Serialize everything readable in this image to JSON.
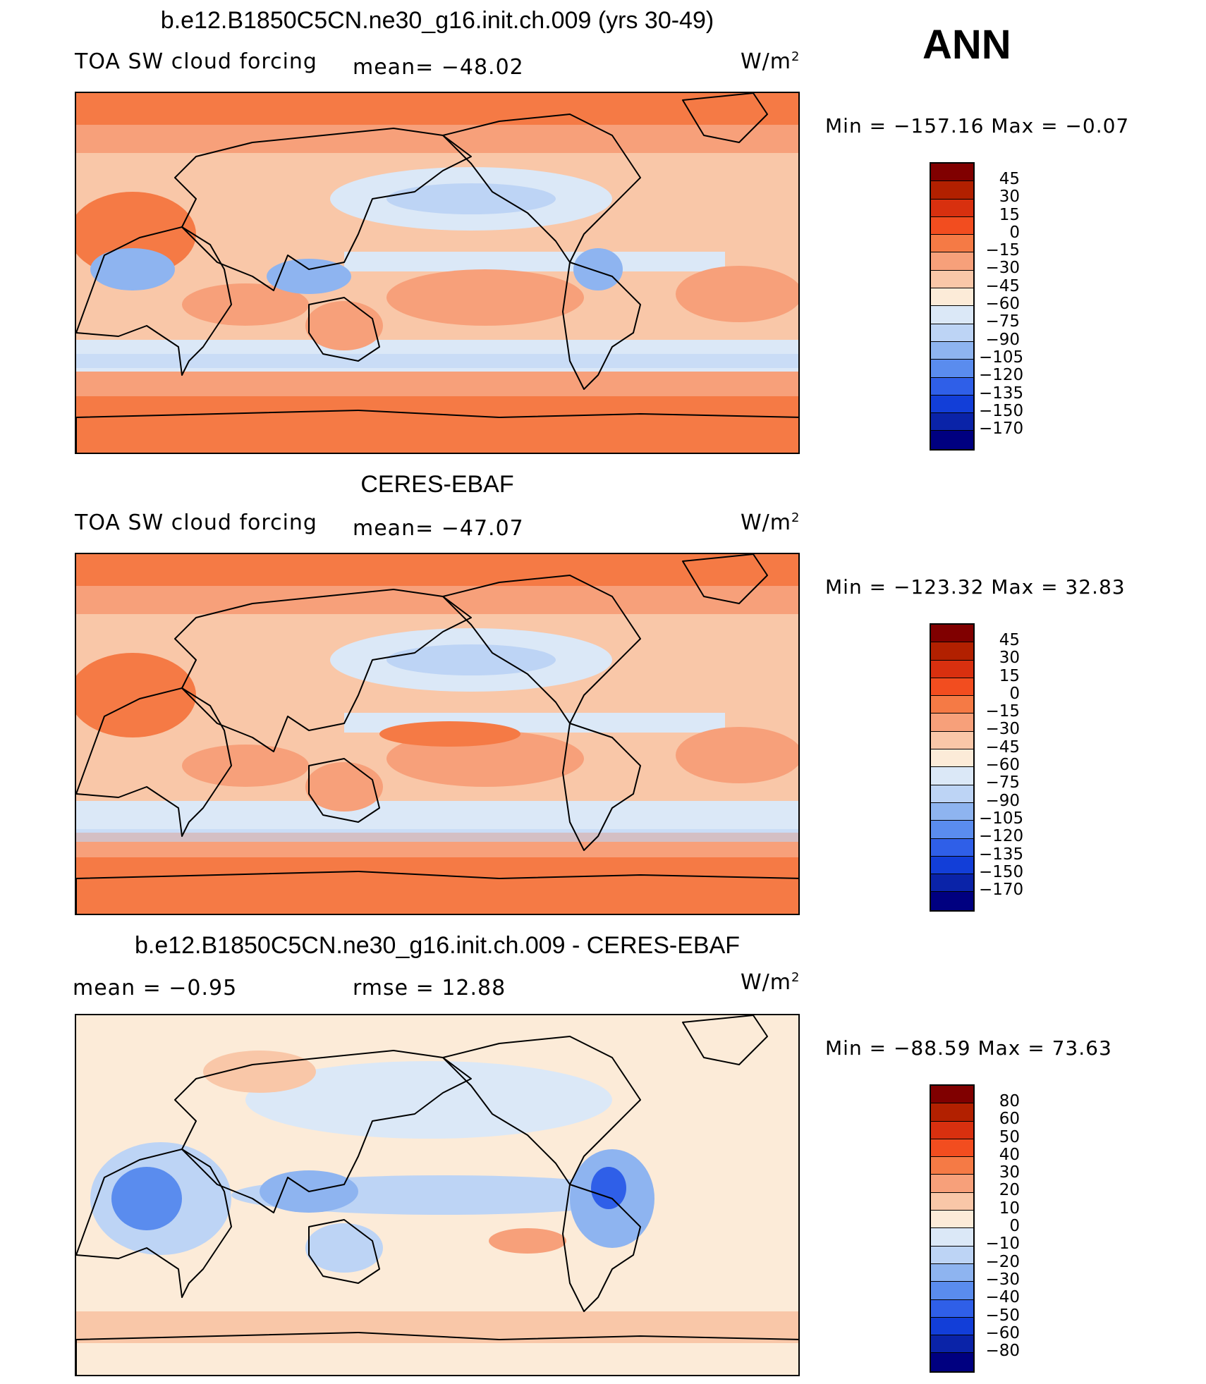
{
  "header": {
    "season": "ANN"
  },
  "panels": [
    {
      "title": "b.e12.B1850C5CN.ne30_g16.init.ch.009 (yrs 30-49)",
      "left_label": "TOA SW cloud forcing",
      "center_label": "mean=  −48.02",
      "units": "W/m",
      "units_exp": "2",
      "minmax": "Min  =  −157.16  Max  =    −0.07",
      "map_icon": "world-map-field",
      "colorbar": {
        "colors": [
          "#800000",
          "#b22000",
          "#d8300f",
          "#f24d1f",
          "#f57a45",
          "#f7a07a",
          "#f9c7a8",
          "#fcebd8",
          "#dbe8f7",
          "#bdd4f5",
          "#8eb4f0",
          "#5a8cee",
          "#2f5fe8",
          "#123ed8",
          "#0a23a8",
          "#000080"
        ],
        "labels": [
          "45",
          "30",
          "15",
          "0",
          "−15",
          "−30",
          "−45",
          "−60",
          "−75",
          "−90",
          "−105",
          "−120",
          "−135",
          "−150",
          "−170"
        ]
      }
    },
    {
      "title": "CERES-EBAF",
      "left_label": "TOA SW cloud forcing",
      "center_label": "mean=  −47.07",
      "units": "W/m",
      "units_exp": "2",
      "minmax": "Min  =  −123.32  Max  =    32.83",
      "map_icon": "world-map-field",
      "colorbar": {
        "colors": [
          "#800000",
          "#b22000",
          "#d8300f",
          "#f24d1f",
          "#f57a45",
          "#f7a07a",
          "#f9c7a8",
          "#fcebd8",
          "#dbe8f7",
          "#bdd4f5",
          "#8eb4f0",
          "#5a8cee",
          "#2f5fe8",
          "#123ed8",
          "#0a23a8",
          "#000080"
        ],
        "labels": [
          "45",
          "30",
          "15",
          "0",
          "−15",
          "−30",
          "−45",
          "−60",
          "−75",
          "−90",
          "−105",
          "−120",
          "−135",
          "−150",
          "−170"
        ]
      }
    },
    {
      "title": "b.e12.B1850C5CN.ne30_g16.init.ch.009 - CERES-EBAF",
      "left_label": "mean  =    −0.95",
      "center_label": "rmse  =    12.88",
      "units": "W/m",
      "units_exp": "2",
      "minmax": "Min  =  −88.59  Max  =    73.63",
      "map_icon": "world-map-difference",
      "colorbar": {
        "colors": [
          "#800000",
          "#b22000",
          "#d8300f",
          "#f24d1f",
          "#f57a45",
          "#f7a07a",
          "#f9c7a8",
          "#fcebd8",
          "#dbe8f7",
          "#bdd4f5",
          "#8eb4f0",
          "#5a8cee",
          "#2f5fe8",
          "#123ed8",
          "#0a23a8",
          "#000080"
        ],
        "labels": [
          "80",
          "60",
          "50",
          "40",
          "30",
          "20",
          "10",
          "0",
          "−10",
          "−20",
          "−30",
          "−40",
          "−50",
          "−60",
          "−80"
        ]
      }
    }
  ]
}
